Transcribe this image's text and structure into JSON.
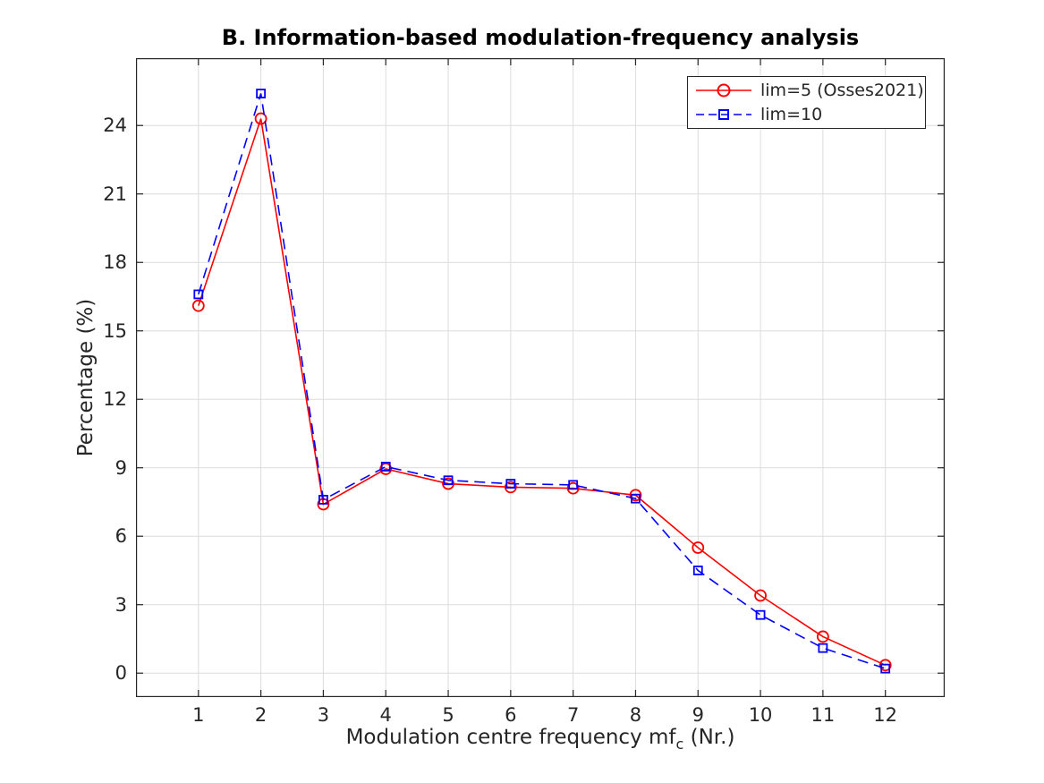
{
  "figure": {
    "title": "B. Information-based modulation-frequency analysis",
    "y_axis": {
      "label": "Percentage (%)"
    },
    "x_axis": {
      "label_prefix": "Modulation centre frequency mf",
      "label_subscript": "c",
      "label_suffix": " (Nr.)"
    },
    "legend": {
      "items": [
        {
          "label": "lim=5 (Osses2021)"
        },
        {
          "label": "lim=10"
        }
      ]
    },
    "grid_color": "#dcdcdc",
    "axis_color": "#262626",
    "background_color": "#ffffff"
  },
  "chart_data": {
    "type": "line",
    "title": "B. Information-based modulation-frequency analysis",
    "xlabel": "Modulation centre frequency mfc (Nr.)",
    "ylabel": "Percentage (%)",
    "x": [
      1,
      2,
      3,
      4,
      5,
      6,
      7,
      8,
      9,
      10,
      11,
      12
    ],
    "series": [
      {
        "name": "lim=5 (Osses2021)",
        "color": "#ff0000",
        "line_style": "solid",
        "marker": "circle",
        "values": [
          16.1,
          24.3,
          7.4,
          8.95,
          8.3,
          8.15,
          8.1,
          7.8,
          5.5,
          3.4,
          1.6,
          0.35
        ]
      },
      {
        "name": "lim=10",
        "color": "#0000ff",
        "line_style": "dashed",
        "marker": "square",
        "values": [
          16.6,
          25.4,
          7.6,
          9.05,
          8.45,
          8.3,
          8.25,
          7.65,
          4.5,
          2.55,
          1.1,
          0.2
        ]
      }
    ],
    "xlim": [
      0,
      12.95
    ],
    "ylim": [
      -1.05,
      26.95
    ],
    "xticks": [
      1,
      2,
      3,
      4,
      5,
      6,
      7,
      8,
      9,
      10,
      11,
      12
    ],
    "yticks": [
      0,
      3,
      6,
      9,
      12,
      15,
      18,
      21,
      24
    ],
    "grid": true,
    "box": true,
    "tick_direction": "in",
    "legend_position": "top-right"
  }
}
